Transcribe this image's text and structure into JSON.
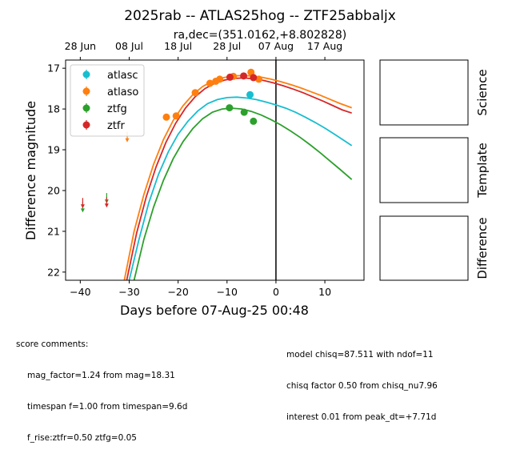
{
  "chart_data": {
    "type": "scatter",
    "title": "2025rab -- ATLAS25hog -- ZTF25abbaljx",
    "subtitle": "ra,dec=(351.0162,+8.802828)",
    "xlabel": "Days before 07-Aug-25 00:48",
    "ylabel": "Difference magnitude",
    "xlim": [
      -43,
      18
    ],
    "ylim": [
      22.2,
      16.8
    ],
    "y_inverted": true,
    "grid": false,
    "legend_position": "upper-left",
    "x_ticks": [
      -40,
      -30,
      -20,
      -10,
      0,
      10
    ],
    "x_tick_labels": [
      "−40",
      "−30",
      "−20",
      "−10",
      "0",
      "10"
    ],
    "y_ticks": [
      17,
      18,
      19,
      20,
      21,
      22
    ],
    "y_tick_labels": [
      "17",
      "18",
      "19",
      "20",
      "21",
      "22"
    ],
    "top_axis_ticks": [
      -40,
      -30,
      -20,
      -10,
      0,
      10
    ],
    "top_axis_labels": [
      "28 Jun",
      "08 Jul",
      "18 Jul",
      "28 Jul",
      "07 Aug",
      "17 Aug"
    ],
    "reference_line_x": 0,
    "series": [
      {
        "name": "atlasc",
        "color": "#17becf",
        "points": [
          {
            "x": -5.3,
            "y": 17.65,
            "err": 0.05
          }
        ],
        "upper_limits": [],
        "model": [
          {
            "x": -30.0,
            "y": 22.2
          },
          {
            "x": -28.0,
            "y": 21.2
          },
          {
            "x": -26.0,
            "y": 20.3
          },
          {
            "x": -24.0,
            "y": 19.6
          },
          {
            "x": -22.0,
            "y": 19.05
          },
          {
            "x": -20.0,
            "y": 18.62
          },
          {
            "x": -18.0,
            "y": 18.3
          },
          {
            "x": -16.0,
            "y": 18.05
          },
          {
            "x": -14.0,
            "y": 17.87
          },
          {
            "x": -12.0,
            "y": 17.77
          },
          {
            "x": -10.0,
            "y": 17.72
          },
          {
            "x": -8.0,
            "y": 17.71
          },
          {
            "x": -6.0,
            "y": 17.73
          },
          {
            "x": -4.0,
            "y": 17.77
          },
          {
            "x": -2.0,
            "y": 17.83
          },
          {
            "x": 0.0,
            "y": 17.9
          },
          {
            "x": 2.0,
            "y": 17.98
          },
          {
            "x": 4.0,
            "y": 18.08
          },
          {
            "x": 6.0,
            "y": 18.2
          },
          {
            "x": 8.0,
            "y": 18.33
          },
          {
            "x": 10.0,
            "y": 18.47
          },
          {
            "x": 12.0,
            "y": 18.62
          },
          {
            "x": 14.0,
            "y": 18.78
          },
          {
            "x": 15.5,
            "y": 18.9
          }
        ]
      },
      {
        "name": "atlaso",
        "color": "#ff7f0e",
        "points": [
          {
            "x": -22.4,
            "y": 18.2,
            "err": 0.08
          },
          {
            "x": -20.4,
            "y": 18.17,
            "err": 0.06
          },
          {
            "x": -16.5,
            "y": 17.6,
            "err": 0.05
          },
          {
            "x": -13.5,
            "y": 17.37,
            "err": 0.04
          },
          {
            "x": -12.3,
            "y": 17.32,
            "err": 0.04
          },
          {
            "x": -11.5,
            "y": 17.27,
            "err": 0.04
          },
          {
            "x": -8.7,
            "y": 17.2,
            "err": 0.04
          },
          {
            "x": -5.1,
            "y": 17.1,
            "err": 0.04
          },
          {
            "x": -3.5,
            "y": 17.27,
            "err": 0.04
          }
        ],
        "upper_limits": [
          {
            "x": -30.4,
            "y": 18.7
          }
        ],
        "model": [
          {
            "x": -31.0,
            "y": 22.2
          },
          {
            "x": -29.0,
            "y": 21.0
          },
          {
            "x": -27.0,
            "y": 20.1
          },
          {
            "x": -25.0,
            "y": 19.35
          },
          {
            "x": -23.0,
            "y": 18.75
          },
          {
            "x": -21.0,
            "y": 18.28
          },
          {
            "x": -19.0,
            "y": 17.92
          },
          {
            "x": -17.0,
            "y": 17.65
          },
          {
            "x": -15.0,
            "y": 17.45
          },
          {
            "x": -13.0,
            "y": 17.32
          },
          {
            "x": -11.0,
            "y": 17.24
          },
          {
            "x": -9.0,
            "y": 17.19
          },
          {
            "x": -7.0,
            "y": 17.18
          },
          {
            "x": -5.0,
            "y": 17.19
          },
          {
            "x": -3.0,
            "y": 17.22
          },
          {
            "x": -1.0,
            "y": 17.27
          },
          {
            "x": 1.0,
            "y": 17.33
          },
          {
            "x": 3.0,
            "y": 17.4
          },
          {
            "x": 5.0,
            "y": 17.48
          },
          {
            "x": 7.0,
            "y": 17.57
          },
          {
            "x": 9.0,
            "y": 17.66
          },
          {
            "x": 11.0,
            "y": 17.76
          },
          {
            "x": 13.0,
            "y": 17.86
          },
          {
            "x": 15.5,
            "y": 17.97
          }
        ]
      },
      {
        "name": "ztfg",
        "color": "#2ca02c",
        "points": [
          {
            "x": -9.5,
            "y": 17.97,
            "err": 0.04
          },
          {
            "x": -6.5,
            "y": 18.08,
            "err": 0.04
          },
          {
            "x": -4.6,
            "y": 18.3,
            "err": 0.05
          }
        ],
        "upper_limits": [
          {
            "x": -39.5,
            "y": 20.42
          },
          {
            "x": -34.6,
            "y": 20.2
          }
        ],
        "model": [
          {
            "x": -29.0,
            "y": 22.2
          },
          {
            "x": -27.0,
            "y": 21.2
          },
          {
            "x": -25.0,
            "y": 20.4
          },
          {
            "x": -23.0,
            "y": 19.75
          },
          {
            "x": -21.0,
            "y": 19.22
          },
          {
            "x": -19.0,
            "y": 18.8
          },
          {
            "x": -17.0,
            "y": 18.48
          },
          {
            "x": -15.0,
            "y": 18.24
          },
          {
            "x": -13.0,
            "y": 18.08
          },
          {
            "x": -11.0,
            "y": 18.0
          },
          {
            "x": -9.0,
            "y": 17.98
          },
          {
            "x": -7.0,
            "y": 18.0
          },
          {
            "x": -5.0,
            "y": 18.06
          },
          {
            "x": -3.0,
            "y": 18.15
          },
          {
            "x": -1.0,
            "y": 18.26
          },
          {
            "x": 1.0,
            "y": 18.39
          },
          {
            "x": 3.0,
            "y": 18.54
          },
          {
            "x": 5.0,
            "y": 18.7
          },
          {
            "x": 7.0,
            "y": 18.88
          },
          {
            "x": 9.0,
            "y": 19.07
          },
          {
            "x": 11.0,
            "y": 19.27
          },
          {
            "x": 13.0,
            "y": 19.47
          },
          {
            "x": 15.5,
            "y": 19.73
          }
        ]
      },
      {
        "name": "ztfr",
        "color": "#d62728",
        "points": [
          {
            "x": -9.4,
            "y": 17.22,
            "err": 0.04
          },
          {
            "x": -6.6,
            "y": 17.19,
            "err": 0.04
          },
          {
            "x": -4.6,
            "y": 17.23,
            "err": 0.04
          }
        ],
        "upper_limits": [
          {
            "x": -39.5,
            "y": 20.32
          },
          {
            "x": -34.6,
            "y": 20.3
          }
        ],
        "model": [
          {
            "x": -30.5,
            "y": 22.2
          },
          {
            "x": -28.5,
            "y": 21.05
          },
          {
            "x": -26.5,
            "y": 20.15
          },
          {
            "x": -24.5,
            "y": 19.42
          },
          {
            "x": -22.5,
            "y": 18.82
          },
          {
            "x": -20.5,
            "y": 18.35
          },
          {
            "x": -18.5,
            "y": 17.98
          },
          {
            "x": -16.5,
            "y": 17.7
          },
          {
            "x": -14.5,
            "y": 17.5
          },
          {
            "x": -12.5,
            "y": 17.37
          },
          {
            "x": -10.5,
            "y": 17.29
          },
          {
            "x": -8.5,
            "y": 17.25
          },
          {
            "x": -6.5,
            "y": 17.24
          },
          {
            "x": -4.5,
            "y": 17.26
          },
          {
            "x": -2.5,
            "y": 17.3
          },
          {
            "x": -0.5,
            "y": 17.36
          },
          {
            "x": 1.5,
            "y": 17.43
          },
          {
            "x": 3.5,
            "y": 17.51
          },
          {
            "x": 5.5,
            "y": 17.6
          },
          {
            "x": 7.5,
            "y": 17.7
          },
          {
            "x": 9.5,
            "y": 17.8
          },
          {
            "x": 11.5,
            "y": 17.91
          },
          {
            "x": 13.5,
            "y": 18.02
          },
          {
            "x": 15.5,
            "y": 18.1
          }
        ]
      }
    ],
    "side_panels": [
      "Science",
      "Template",
      "Difference"
    ]
  },
  "comments": {
    "left_header": "score comments:",
    "left_lines": [
      "mag_factor=1.24 from mag=18.31",
      "timespan f=1.00 from timespan=9.6d",
      "f_rise:ztfr=0.50 ztfg=0.05"
    ],
    "right_lines": [
      "model chisq=87.511 with ndof=11",
      "chisq factor 0.50 from chisq_nu7.96",
      "interest 0.01 from peak_dt=+7.71d"
    ]
  }
}
